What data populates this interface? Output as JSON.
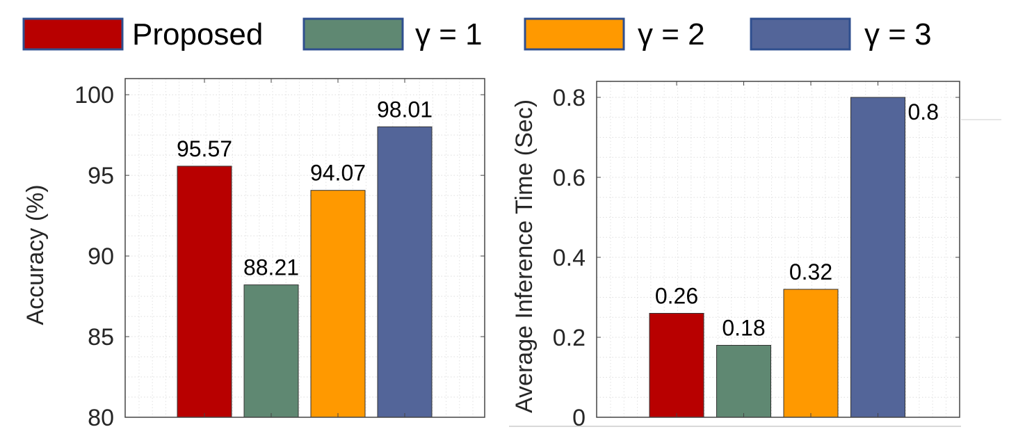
{
  "legend": [
    {
      "label": "Proposed",
      "color": "#B80000"
    },
    {
      "label": "γ = 1",
      "color": "#5F8872"
    },
    {
      "label": "γ = 2",
      "color": "#FF9900"
    },
    {
      "label": "γ = 3",
      "color": "#536599"
    }
  ],
  "chart_data": [
    {
      "type": "bar",
      "categories": [
        "Proposed",
        "γ = 1",
        "γ = 2",
        "γ = 3"
      ],
      "values": [
        95.57,
        88.21,
        94.07,
        98.01
      ],
      "data_labels": [
        "95.57",
        "88.21",
        "94.07",
        "98.01"
      ],
      "xlabel": "",
      "ylabel": "Accuracy (%)",
      "ylim": [
        80,
        101
      ],
      "yticks": [
        80,
        85,
        90,
        95,
        100
      ],
      "ytick_labels": [
        "80",
        "85",
        "90",
        "95",
        "100"
      ],
      "grid": true,
      "legend": "top"
    },
    {
      "type": "bar",
      "categories": [
        "Proposed",
        "γ = 1",
        "γ = 2",
        "γ = 3"
      ],
      "values": [
        0.26,
        0.18,
        0.32,
        0.8
      ],
      "data_labels": [
        "0.26",
        "0.18",
        "0.32",
        "0.8"
      ],
      "xlabel": "",
      "ylabel": "Average Inference Time (Sec)",
      "ylim": [
        0,
        0.84
      ],
      "yticks": [
        0,
        0.2,
        0.4,
        0.6,
        0.8
      ],
      "ytick_labels": [
        "0",
        "0.2",
        "0.4",
        "0.6",
        "0.8"
      ],
      "grid": true,
      "legend": "top"
    }
  ]
}
